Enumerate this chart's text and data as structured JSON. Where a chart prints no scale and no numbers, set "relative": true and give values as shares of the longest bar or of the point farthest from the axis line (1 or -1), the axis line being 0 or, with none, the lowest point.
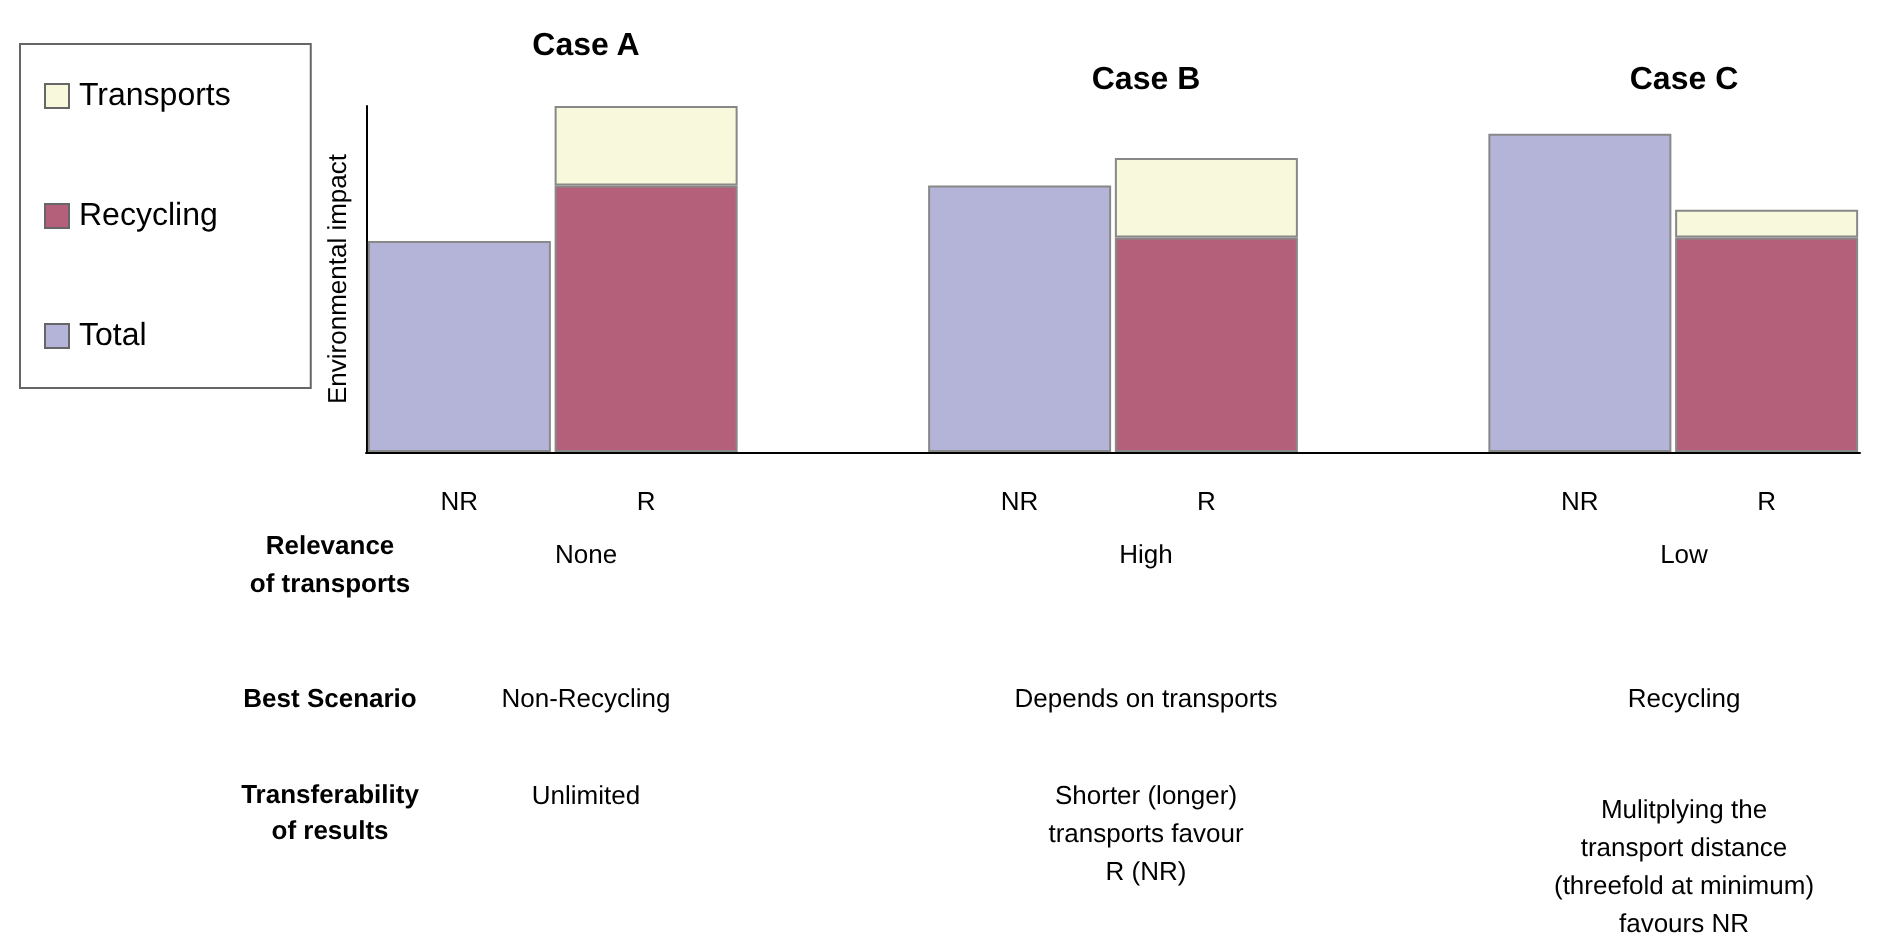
{
  "chart_data": {
    "type": "bar",
    "stacked": true,
    "relative": true,
    "ylabel": "Environmental impact",
    "categories": [
      "NR",
      "R",
      null,
      "NR",
      "R",
      null,
      "NR",
      "R"
    ],
    "series": [
      {
        "name": "Total",
        "color": "#b4b4d8",
        "values": [
          0.61,
          null,
          null,
          0.77,
          null,
          null,
          0.92,
          null
        ]
      },
      {
        "name": "Recycling",
        "color": "#b5607a",
        "values": [
          null,
          0.77,
          null,
          null,
          0.62,
          null,
          null,
          0.62
        ]
      },
      {
        "name": "Transports",
        "color": "#f8f8dc",
        "values": [
          null,
          0.23,
          null,
          null,
          0.23,
          null,
          null,
          0.08
        ]
      }
    ],
    "legend": "left",
    "grid": false,
    "annotations": [
      "Case A",
      "Case B",
      "Case C",
      "Relevance\nof transports",
      "None",
      "High",
      "Low",
      "Best Scenario",
      "Non-Recycling",
      "Depends on transports",
      "Recycling",
      "Transferability\nof results",
      "Unlimited",
      "Shorter (longer)\ntransports favour\nR (NR)",
      "Mulitplying the\ntransport distance\n(threefold at minimum)\nfavours NR"
    ]
  }
}
